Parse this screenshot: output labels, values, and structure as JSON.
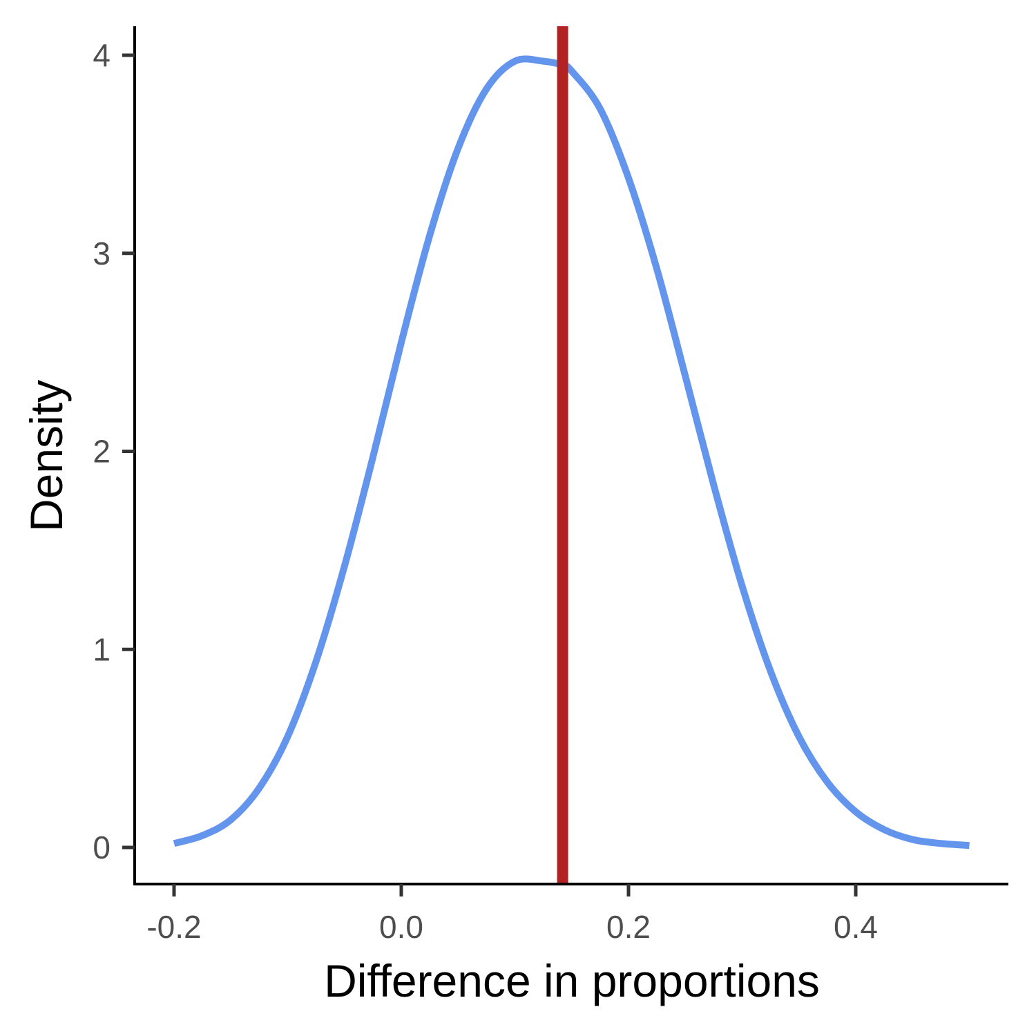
{
  "chart_data": {
    "type": "line",
    "xlabel": "Difference in proportions",
    "ylabel": "Density",
    "xlim": [
      -0.2,
      0.5
    ],
    "ylim": [
      0,
      4
    ],
    "x_ticks": [
      {
        "value": -0.2,
        "label": "-0.2"
      },
      {
        "value": 0.0,
        "label": "0.0"
      },
      {
        "value": 0.2,
        "label": "0.2"
      },
      {
        "value": 0.4,
        "label": "0.4"
      }
    ],
    "y_ticks": [
      {
        "value": 0,
        "label": "0"
      },
      {
        "value": 1,
        "label": "1"
      },
      {
        "value": 2,
        "label": "2"
      },
      {
        "value": 3,
        "label": "3"
      },
      {
        "value": 4,
        "label": "4"
      }
    ],
    "grid": false,
    "series": [
      {
        "color": "#6495ED",
        "x": [
          -0.2,
          -0.175,
          -0.15,
          -0.125,
          -0.1,
          -0.075,
          -0.05,
          -0.025,
          0.0,
          0.025,
          0.05,
          0.075,
          0.1,
          0.125,
          0.142,
          0.15,
          0.175,
          0.2,
          0.225,
          0.25,
          0.275,
          0.3,
          0.325,
          0.35,
          0.375,
          0.4,
          0.425,
          0.45,
          0.475,
          0.5
        ],
        "y": [
          0.02,
          0.06,
          0.14,
          0.3,
          0.56,
          0.94,
          1.42,
          1.97,
          2.55,
          3.09,
          3.53,
          3.83,
          3.97,
          3.97,
          3.95,
          3.92,
          3.73,
          3.38,
          2.92,
          2.38,
          1.83,
          1.32,
          0.89,
          0.56,
          0.33,
          0.18,
          0.09,
          0.04,
          0.02,
          0.01
        ]
      }
    ],
    "reference_line": {
      "x": 0.142,
      "color": "#B22222"
    }
  }
}
